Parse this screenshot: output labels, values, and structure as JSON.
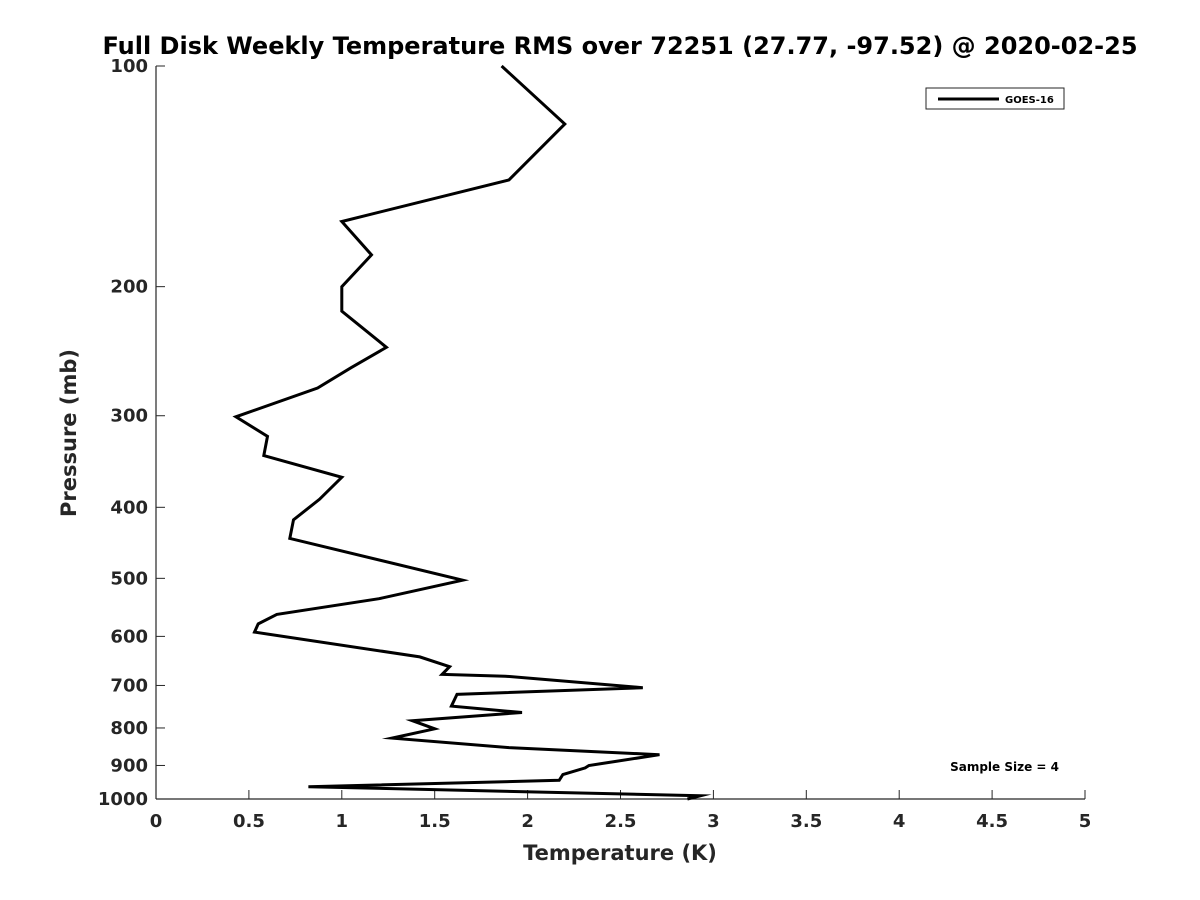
{
  "chart_data": {
    "type": "line",
    "title": "Full Disk Weekly Temperature RMS over 72251 (27.77, -97.52) @ 2020-02-25",
    "xlabel": "Temperature (K)",
    "ylabel": "Pressure (mb)",
    "xlim": [
      0,
      5
    ],
    "ylim": [
      1000,
      100
    ],
    "yscale": "log",
    "xticks": [
      0,
      0.5,
      1,
      1.5,
      2,
      2.5,
      3,
      3.5,
      4,
      4.5,
      5
    ],
    "xtick_labels": [
      "0",
      "0.5",
      "1",
      "1.5",
      "2",
      "2.5",
      "3",
      "3.5",
      "4",
      "4.5",
      "5"
    ],
    "yticks": [
      100,
      200,
      300,
      400,
      500,
      600,
      700,
      800,
      900,
      1000
    ],
    "ytick_labels": [
      "100",
      "200",
      "300",
      "400",
      "500",
      "600",
      "700",
      "800",
      "900",
      "1000"
    ],
    "grid": false,
    "legend": {
      "placement": "top-right",
      "entries": [
        "GOES-16"
      ]
    },
    "annotation": "Sample Size = 4",
    "series": [
      {
        "name": "GOES-16",
        "color": "#000000",
        "points": [
          [
            1.86,
            100
          ],
          [
            2.2,
            120
          ],
          [
            1.9,
            143
          ],
          [
            1.0,
            163
          ],
          [
            1.16,
            181
          ],
          [
            1.0,
            200
          ],
          [
            1.0,
            216
          ],
          [
            1.24,
            242
          ],
          [
            1.05,
            258
          ],
          [
            0.87,
            275
          ],
          [
            0.43,
            301
          ],
          [
            0.6,
            320
          ],
          [
            0.58,
            340
          ],
          [
            1.0,
            364
          ],
          [
            0.88,
            390
          ],
          [
            0.74,
            416
          ],
          [
            0.72,
            441
          ],
          [
            1.65,
            503
          ],
          [
            1.2,
            533
          ],
          [
            0.65,
            560
          ],
          [
            0.55,
            577
          ],
          [
            0.53,
            592
          ],
          [
            1.42,
            640
          ],
          [
            1.58,
            660
          ],
          [
            1.54,
            676
          ],
          [
            1.88,
            680
          ],
          [
            2.62,
            705
          ],
          [
            1.62,
            720
          ],
          [
            1.59,
            747
          ],
          [
            1.97,
            762
          ],
          [
            1.38,
            782
          ],
          [
            1.5,
            802
          ],
          [
            1.27,
            826
          ],
          [
            1.9,
            851
          ],
          [
            2.71,
            870
          ],
          [
            2.33,
            900
          ],
          [
            2.31,
            907
          ],
          [
            2.19,
            926
          ],
          [
            2.17,
            943
          ],
          [
            0.82,
            962
          ],
          [
            2.93,
            990
          ],
          [
            2.86,
            1000
          ]
        ]
      }
    ]
  }
}
